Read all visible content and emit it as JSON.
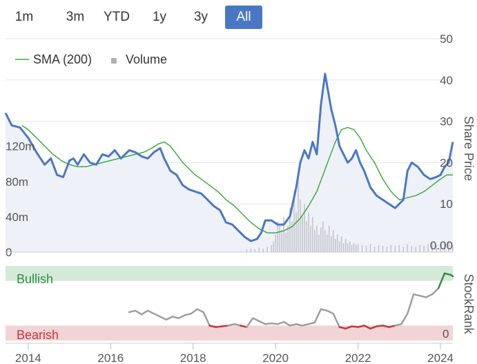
{
  "range_selector": {
    "buttons": [
      {
        "label": "1m",
        "active": false
      },
      {
        "label": "3m",
        "active": false
      },
      {
        "label": "YTD",
        "active": false
      },
      {
        "label": "1y",
        "active": false
      },
      {
        "label": "3y",
        "active": false
      },
      {
        "label": "All",
        "active": true
      }
    ],
    "active_color": "#4a77c4"
  },
  "chart_data": [
    {
      "type": "line",
      "xlabel": "",
      "x_ticks": [
        "2014",
        "2016",
        "2018",
        "2020",
        "2022",
        "2024"
      ],
      "y_right_label": "Share Price",
      "y_right_ticks": [
        "50",
        "40",
        "30",
        "20",
        "10",
        "0.00"
      ],
      "y_right_range": [
        0,
        50
      ],
      "y_left_ticks": [
        "120m",
        "80m",
        "40m",
        "0"
      ],
      "y_left_range": [
        0,
        150
      ],
      "legend": {
        "placement": "top-left",
        "items": [
          {
            "label": "SMA (200)",
            "color": "#3faa3f"
          },
          {
            "label": "Volume",
            "color": "#b0b0b8"
          }
        ]
      },
      "grid": true,
      "series": [
        {
          "color": "#4a77c4",
          "x": [
            2013.45,
            2013.6,
            2013.8,
            2014.0,
            2014.2,
            2014.4,
            2014.55,
            2014.7,
            2014.85,
            2015.0,
            2015.1,
            2015.2,
            2015.35,
            2015.5,
            2015.65,
            2015.8,
            2015.95,
            2016.1,
            2016.25,
            2016.45,
            2016.6,
            2016.75,
            2016.9,
            2017.05,
            2017.2,
            2017.3,
            2017.45,
            2017.6,
            2017.75,
            2017.9,
            2018.05,
            2018.2,
            2018.35,
            2018.5,
            2018.65,
            2018.8,
            2018.95,
            2019.1,
            2019.25,
            2019.4,
            2019.55,
            2019.65,
            2019.75,
            2019.9,
            2020.05,
            2020.2,
            2020.35,
            2020.5,
            2020.6,
            2020.7,
            2020.8,
            2020.9,
            2021.0,
            2021.1,
            2021.2,
            2021.28,
            2021.35,
            2021.45,
            2021.55,
            2021.65,
            2021.75,
            2021.85,
            2021.95,
            2022.05,
            2022.15,
            2022.3,
            2022.45,
            2022.6,
            2022.75,
            2022.9,
            2023.0,
            2023.1,
            2023.2,
            2023.3,
            2023.45,
            2023.6,
            2023.75,
            2023.9,
            2024.0,
            2024.1,
            2024.2,
            2024.3
          ],
          "y": [
            32,
            29,
            28.5,
            26,
            22.5,
            19.5,
            21,
            17,
            16.5,
            20.5,
            21,
            19.5,
            22,
            20,
            19.5,
            22,
            21.5,
            23,
            21,
            23,
            22.5,
            21.5,
            21,
            22.5,
            23.5,
            21,
            18,
            17,
            14.5,
            13.5,
            13,
            12.5,
            11,
            9.5,
            8.5,
            5.5,
            5,
            3.5,
            2,
            1,
            1.5,
            3,
            6,
            6,
            5,
            5,
            7,
            14,
            20,
            23,
            21,
            25,
            22,
            34,
            41.5,
            37,
            33,
            29,
            24,
            22,
            20,
            21,
            23,
            20,
            18,
            14,
            12,
            11,
            10,
            9,
            10,
            11,
            18,
            20,
            19,
            17,
            16,
            16.5,
            17,
            19,
            20,
            25
          ]
        },
        {
          "name": "SMA (200)",
          "color": "#3faa3f",
          "x": [
            2013.85,
            2014.0,
            2014.2,
            2014.4,
            2014.6,
            2014.8,
            2015.0,
            2015.2,
            2015.4,
            2015.6,
            2015.8,
            2016.0,
            2016.2,
            2016.4,
            2016.6,
            2016.8,
            2017.0,
            2017.15,
            2017.3,
            2017.45,
            2017.6,
            2017.75,
            2017.9,
            2018.05,
            2018.2,
            2018.4,
            2018.6,
            2018.8,
            2019.0,
            2019.2,
            2019.4,
            2019.6,
            2019.8,
            2020.0,
            2020.2,
            2020.4,
            2020.6,
            2020.8,
            2021.0,
            2021.15,
            2021.3,
            2021.45,
            2021.6,
            2021.75,
            2021.9,
            2022.05,
            2022.2,
            2022.4,
            2022.6,
            2022.8,
            2023.0,
            2023.2,
            2023.4,
            2023.6,
            2023.8,
            2024.0,
            2024.15,
            2024.3
          ],
          "y": [
            29,
            28,
            26,
            24,
            22,
            20.5,
            19.5,
            19,
            19,
            19.5,
            20,
            20.5,
            21,
            21.5,
            22,
            22.5,
            23.5,
            24.5,
            25,
            24,
            22,
            20,
            18.5,
            17,
            16,
            14.5,
            13,
            11,
            9.5,
            7.5,
            5.5,
            4,
            3,
            3,
            3.5,
            4.5,
            6.5,
            9.5,
            13,
            17,
            21,
            25,
            28,
            28.5,
            28,
            26,
            23,
            20,
            16,
            13,
            11,
            11.5,
            12,
            13,
            14.5,
            16,
            17,
            17
          ]
        }
      ],
      "volume": {
        "color": "#c4c4cc",
        "x": [
          2019.3,
          2019.4,
          2019.5,
          2019.6,
          2019.7,
          2019.8,
          2019.9,
          2019.95,
          2020.0,
          2020.05,
          2020.1,
          2020.15,
          2020.2,
          2020.25,
          2020.3,
          2020.35,
          2020.4,
          2020.45,
          2020.5,
          2020.55,
          2020.6,
          2020.65,
          2020.7,
          2020.75,
          2020.8,
          2020.85,
          2020.9,
          2020.95,
          2021.0,
          2021.05,
          2021.1,
          2021.15,
          2021.2,
          2021.25,
          2021.3,
          2021.35,
          2021.4,
          2021.45,
          2021.5,
          2021.55,
          2021.6,
          2021.65,
          2021.7,
          2021.75,
          2021.8,
          2021.85,
          2021.9,
          2021.95,
          2022.0,
          2022.1,
          2022.2,
          2022.3,
          2022.4,
          2022.5,
          2022.6,
          2022.7,
          2022.8,
          2022.9,
          2023.0,
          2023.1,
          2023.2,
          2023.3,
          2023.4,
          2023.5,
          2023.6,
          2023.7,
          2023.8,
          2023.9,
          2024.0,
          2024.1,
          2024.2,
          2024.3
        ],
        "y": [
          3,
          4,
          3,
          5,
          4,
          6,
          8,
          12,
          20,
          35,
          30,
          25,
          40,
          22,
          30,
          50,
          35,
          70,
          45,
          90,
          60,
          40,
          55,
          35,
          45,
          30,
          40,
          25,
          30,
          20,
          28,
          35,
          25,
          20,
          30,
          18,
          25,
          15,
          20,
          12,
          18,
          10,
          15,
          10,
          12,
          8,
          10,
          8,
          9,
          8,
          7,
          9,
          6,
          8,
          7,
          6,
          8,
          7,
          8,
          6,
          9,
          7,
          6,
          8,
          7,
          9,
          10,
          8,
          9,
          10,
          12,
          8
        ]
      }
    },
    {
      "type": "line",
      "title": "",
      "y_right_label": "StockRank",
      "y_right_ticks": [
        "0"
      ],
      "y_range": [
        0,
        100
      ],
      "zones": [
        {
          "label": "Bullish",
          "from": 80,
          "to": 100,
          "color": "#d2ead7",
          "text_color": "#2e8b3e"
        },
        {
          "label": "Bearish",
          "from": 0,
          "to": 20,
          "color": "#f3d4d6",
          "text_color": "#c9323c"
        }
      ],
      "series": [
        {
          "name": "StockRank",
          "colors": {
            "neutral": "#9e9e9e",
            "bearish": "#c9323c",
            "bullish": "#2e8b3e"
          },
          "x": [
            2016.45,
            2016.6,
            2016.75,
            2016.9,
            2017.05,
            2017.2,
            2017.35,
            2017.5,
            2017.65,
            2017.8,
            2017.95,
            2018.1,
            2018.25,
            2018.4,
            2018.55,
            2018.7,
            2018.85,
            2019.0,
            2019.15,
            2019.3,
            2019.45,
            2019.6,
            2019.75,
            2019.9,
            2020.05,
            2020.2,
            2020.35,
            2020.5,
            2020.65,
            2020.8,
            2020.95,
            2021.1,
            2021.25,
            2021.4,
            2021.55,
            2021.7,
            2021.85,
            2022.0,
            2022.15,
            2022.3,
            2022.45,
            2022.6,
            2022.75,
            2022.9,
            2023.05,
            2023.2,
            2023.35,
            2023.5,
            2023.65,
            2023.8,
            2023.95,
            2024.1,
            2024.25,
            2024.3
          ],
          "y": [
            38,
            40,
            35,
            40,
            36,
            32,
            28,
            32,
            30,
            34,
            36,
            42,
            38,
            20,
            18,
            19,
            20,
            22,
            20,
            18,
            30,
            26,
            22,
            23,
            22,
            25,
            20,
            22,
            20,
            22,
            24,
            42,
            40,
            36,
            18,
            16,
            19,
            18,
            20,
            16,
            19,
            20,
            18,
            20,
            22,
            36,
            62,
            60,
            58,
            62,
            70,
            90,
            88,
            86
          ]
        }
      ]
    }
  ]
}
